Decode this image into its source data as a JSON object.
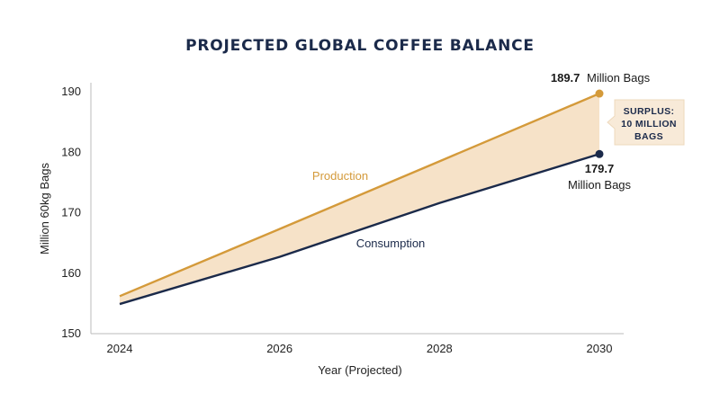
{
  "chart_data": {
    "type": "line",
    "title": "PROJECTED GLOBAL COFFEE BALANCE",
    "xlabel": "Year (Projected)",
    "ylabel": "Million 60kg Bags",
    "x": [
      2024,
      2026,
      2028,
      2030
    ],
    "x_ticks": [
      "2024",
      "2026",
      "2028",
      "2030"
    ],
    "xlim": [
      2024,
      2030
    ],
    "ylim": [
      150,
      190
    ],
    "y_ticks": [
      "150",
      "160",
      "170",
      "180",
      "190"
    ],
    "grid": false,
    "series": [
      {
        "name": "Production",
        "color": "#d49a3a",
        "values": [
          156.2,
          167.3,
          178.5,
          189.7
        ],
        "end_value": "189.7",
        "end_unit": "Million Bags"
      },
      {
        "name": "Consumption",
        "color": "#1b2a4a",
        "values": [
          154.9,
          162.7,
          171.6,
          179.7
        ],
        "end_value": "179.7",
        "end_unit": "Million Bags"
      }
    ],
    "shaded_gap_color": "#f6e2c8",
    "annotation": {
      "lines": [
        "SURPLUS:",
        "10 MILLION",
        "BAGS"
      ],
      "background": "#f8ead8",
      "text_color": "#1b2a4a"
    },
    "title_color": "#1b2a4a"
  }
}
